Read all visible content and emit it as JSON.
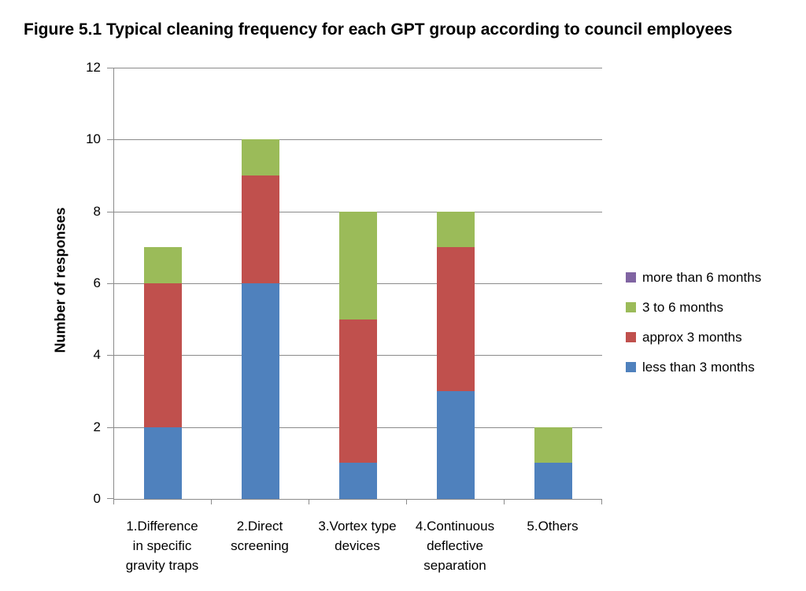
{
  "title": "Figure 5.1 Typical cleaning frequency for each GPT group according to council employees",
  "chart_data": {
    "type": "bar",
    "stacked": true,
    "title": "Figure 5.1 Typical cleaning frequency for each GPT group according to council employees",
    "xlabel": "",
    "ylabel": "Number of responses",
    "ylim": [
      0,
      12
    ],
    "yticks": [
      0,
      2,
      4,
      6,
      8,
      10,
      12
    ],
    "grid": true,
    "legend_position": "right",
    "categories": [
      "1.Difference in specific gravity traps",
      "2.Direct screening",
      "3.Vortex type devices",
      "4.Continuous deflective separation",
      "5.Others"
    ],
    "category_label_lines": [
      [
        "1.Difference",
        "in specific",
        "gravity traps"
      ],
      [
        "2.Direct",
        "screening"
      ],
      [
        "3.Vortex type",
        "devices"
      ],
      [
        "4.Continuous",
        "deflective",
        "separation"
      ],
      [
        "5.Others"
      ]
    ],
    "series": [
      {
        "name": "less than 3 months",
        "color": "#4F81BD",
        "values": [
          2,
          6,
          1,
          3,
          1
        ]
      },
      {
        "name": "approx 3 months",
        "color": "#C0504D",
        "values": [
          4,
          3,
          4,
          4,
          0
        ]
      },
      {
        "name": "3 to 6 months",
        "color": "#9BBB59",
        "values": [
          1,
          1,
          3,
          1,
          1
        ]
      },
      {
        "name": "more than 6 months",
        "color": "#8064A2",
        "values": [
          0,
          0,
          0,
          0,
          0
        ]
      }
    ]
  },
  "colors": {
    "axis": "#8B8B8B",
    "grid": "#8B8B8B",
    "text": "#000000",
    "background": "#FFFFFF"
  }
}
